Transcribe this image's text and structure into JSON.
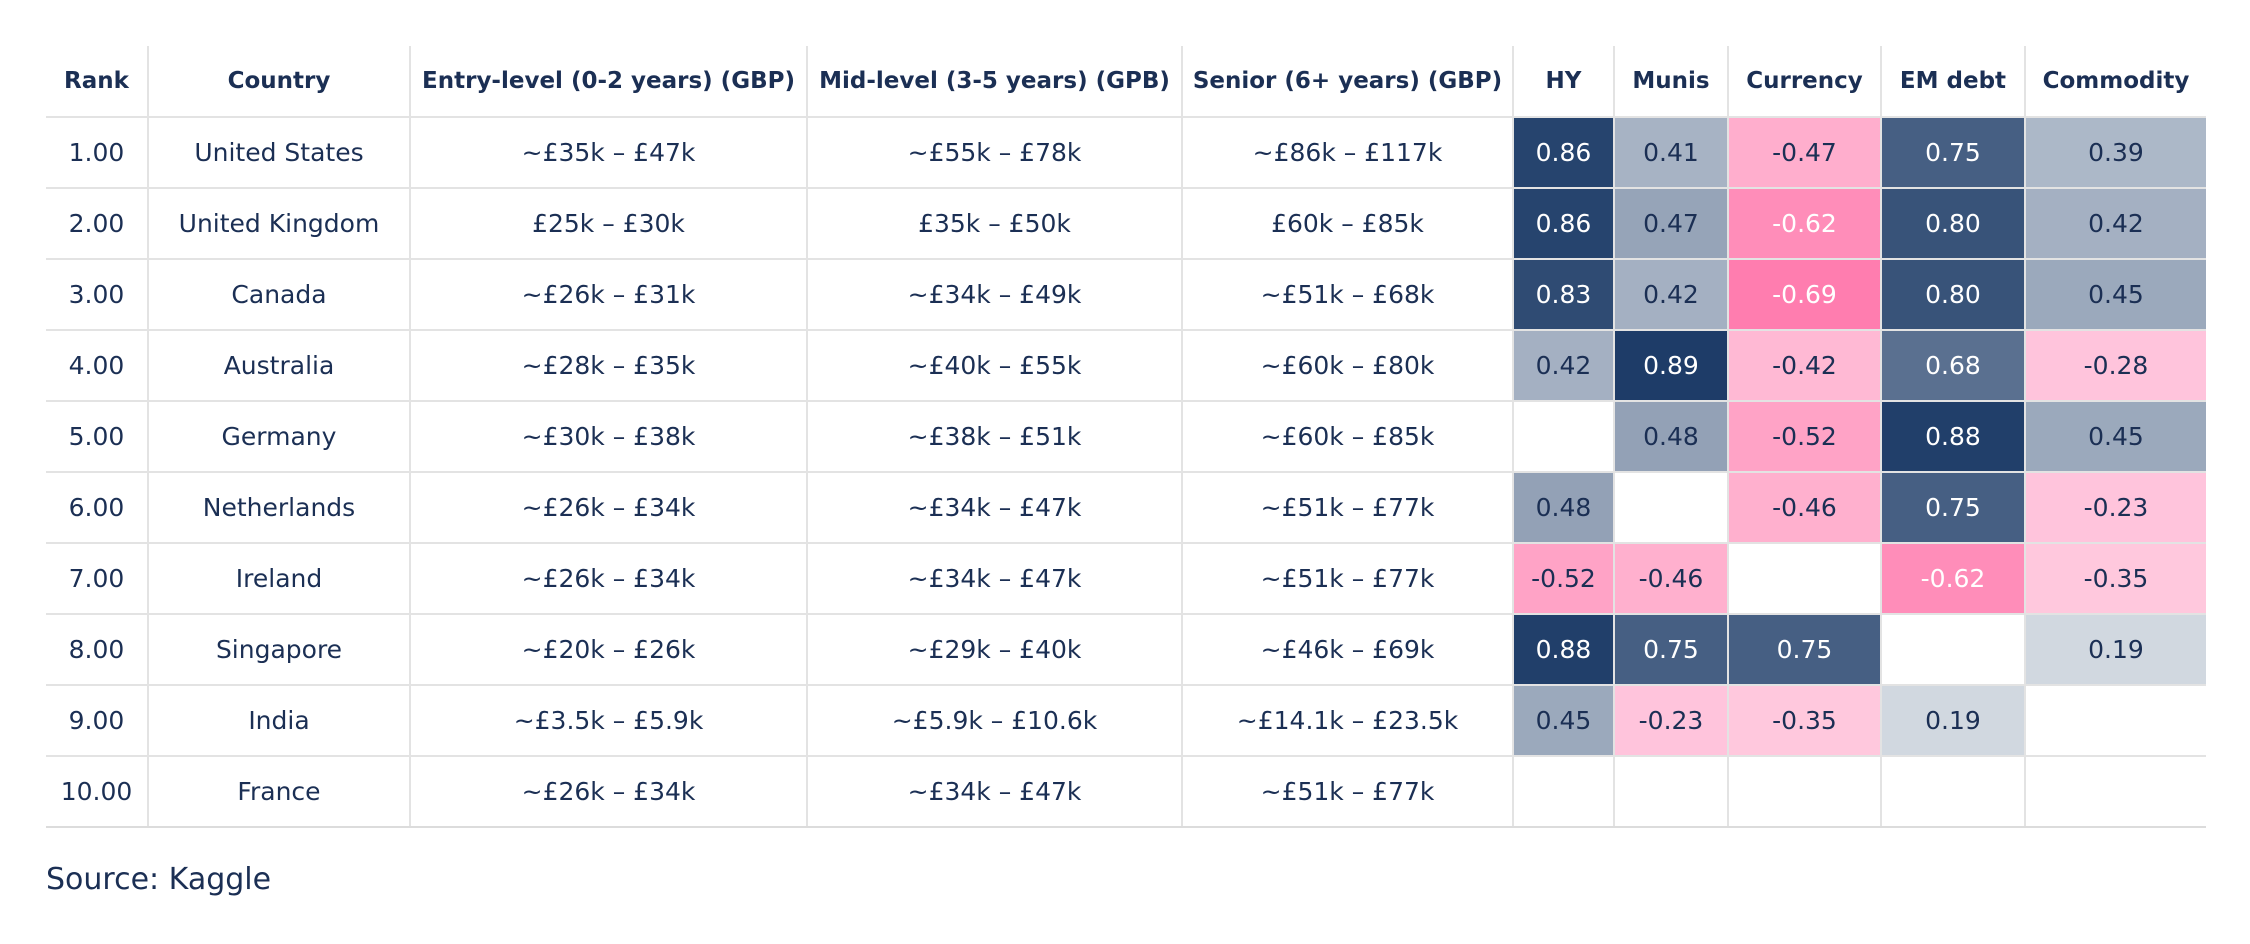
{
  "chart_data": {
    "type": "table",
    "columns": [
      "Rank",
      "Country",
      "Entry-level (0-2 years) (GBP)",
      "Mid-level (3-5 years) (GPB)",
      "Senior (6+ years) (GBP)",
      "HY",
      "Munis",
      "Currency",
      "EM debt",
      "Commodity"
    ],
    "rows": [
      [
        "1.00",
        "United States",
        "~£35k – £47k",
        "~£55k – £78k",
        "~£86k – £117k",
        "0.86",
        "0.41",
        "-0.47",
        "0.75",
        "0.39"
      ],
      [
        "2.00",
        "United Kingdom",
        "£25k – £30k",
        "£35k – £50k",
        "£60k – £85k",
        "0.86",
        "0.47",
        "-0.62",
        "0.80",
        "0.42"
      ],
      [
        "3.00",
        "Canada",
        "~£26k – £31k",
        "~£34k – £49k",
        "~£51k – £68k",
        "0.83",
        "0.42",
        "-0.69",
        "0.80",
        "0.45"
      ],
      [
        "4.00",
        "Australia",
        "~£28k – £35k",
        "~£40k – £55k",
        "~£60k – £80k",
        "0.42",
        "0.89",
        "-0.42",
        "0.68",
        "-0.28"
      ],
      [
        "5.00",
        "Germany",
        "~£30k – £38k",
        "~£38k – £51k",
        "~£60k – £85k",
        "",
        "0.48",
        "-0.52",
        "0.88",
        "0.45"
      ],
      [
        "6.00",
        "Netherlands",
        "~£26k – £34k",
        "~£34k – £47k",
        "~£51k – £77k",
        "0.48",
        "",
        "-0.46",
        "0.75",
        "-0.23"
      ],
      [
        "7.00",
        "Ireland",
        "~£26k – £34k",
        "~£34k – £47k",
        "~£51k – £77k",
        "-0.52",
        "-0.46",
        "",
        "-0.62",
        "-0.35"
      ],
      [
        "8.00",
        "Singapore",
        "~£20k – £26k",
        "~£29k – £40k",
        "~£46k – £69k",
        "0.88",
        "0.75",
        "0.75",
        "",
        "0.19"
      ],
      [
        "9.00",
        "India",
        "~£3.5k – £5.9k",
        "~£5.9k – £10.6k",
        "~£14.1k – £23.5k",
        "0.45",
        "-0.23",
        "-0.35",
        "0.19",
        ""
      ],
      [
        "10.00",
        "France",
        "~£26k – £34k",
        "~£34k – £47k",
        "~£51k – £77k",
        "",
        "",
        "",
        "",
        ""
      ]
    ],
    "heatmap_columns": [
      "HY",
      "Munis",
      "Currency",
      "EM debt",
      "Commodity"
    ],
    "colors": {
      "positive": "#1b3a66",
      "negative": "#ff4f93",
      "neutral_text": "#1b2f54",
      "grid": "#e3e3e3"
    }
  },
  "source": "Source: Kaggle"
}
